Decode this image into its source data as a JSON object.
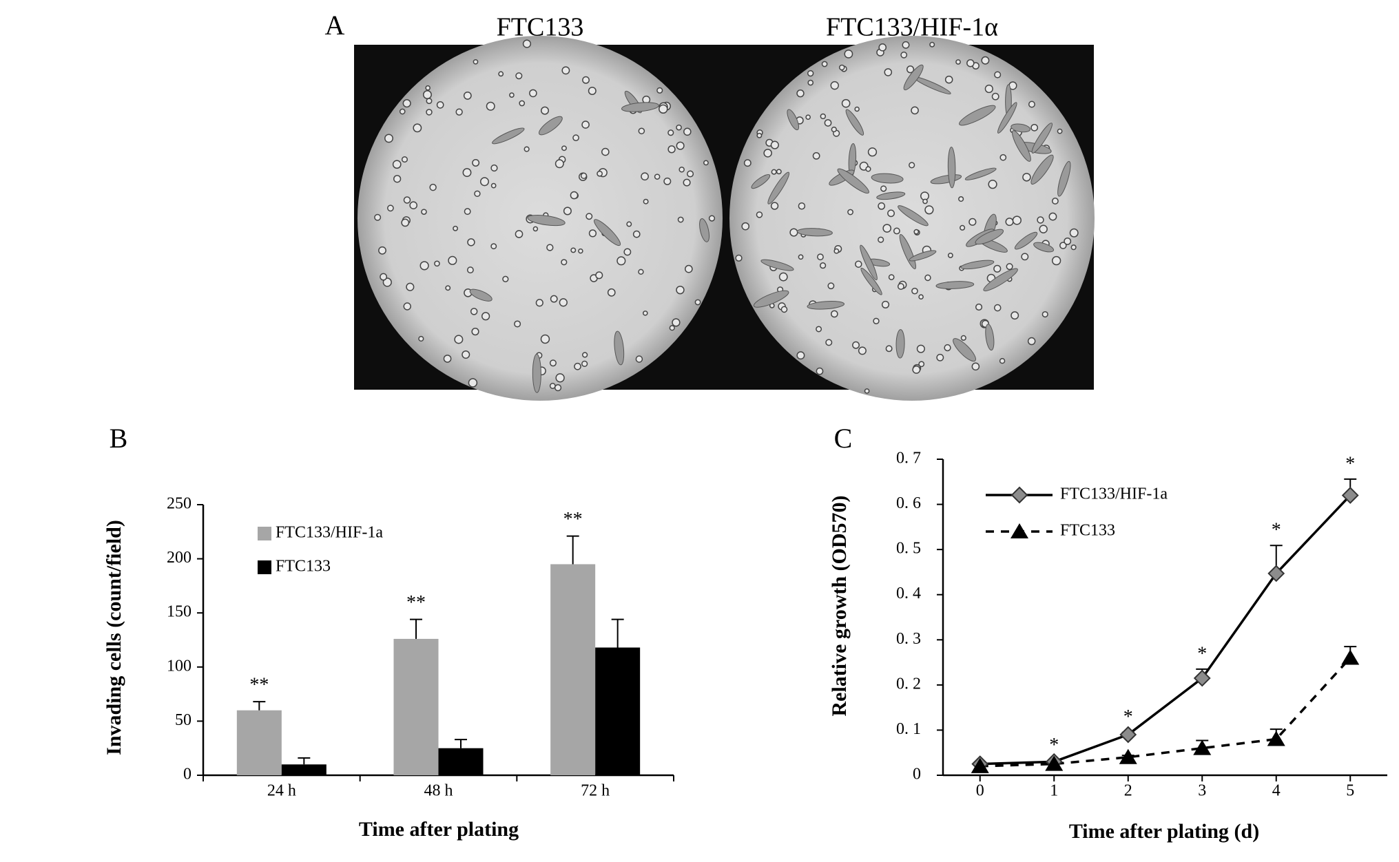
{
  "panel_a": {
    "label": "A",
    "titles": [
      "FTC133",
      "FTC133/HIF-1α"
    ]
  },
  "chart_data": [
    {
      "type": "bar",
      "label": "B",
      "y_label": "Invading cells (count/field)",
      "x_label": "Time after plating",
      "categories": [
        "24 h",
        "48 h",
        "72 h"
      ],
      "series": [
        {
          "name": "FTC133/HIF-1a",
          "color": "#a6a6a6",
          "values": [
            60,
            126,
            195
          ],
          "errors": [
            8,
            18,
            26
          ]
        },
        {
          "name": "FTC133",
          "color": "#000000",
          "values": [
            10,
            25,
            118
          ],
          "errors": [
            6,
            8,
            26
          ]
        }
      ],
      "significance": [
        "**",
        "**",
        "**"
      ],
      "ylim": [
        0,
        250
      ],
      "yticks": [
        0,
        50,
        100,
        150,
        200,
        250
      ]
    },
    {
      "type": "line",
      "label": "C",
      "y_label": "Relative growth (OD570)",
      "x_label": "Time after plating (d)",
      "x": [
        0,
        1,
        2,
        3,
        4,
        5
      ],
      "series": [
        {
          "name": "FTC133/HIF-1a",
          "color": "#000000",
          "marker": "diamond",
          "marker_color": "#8c8c8c",
          "line_style": "solid",
          "values": [
            0.025,
            0.03,
            0.09,
            0.215,
            0.447,
            0.62
          ],
          "errors": [
            0,
            0.003,
            0.005,
            0.02,
            0.062,
            0.036
          ]
        },
        {
          "name": "FTC133",
          "color": "#000000",
          "marker": "triangle",
          "marker_color": "#000000",
          "line_style": "dashed",
          "values": [
            0.02,
            0.025,
            0.04,
            0.06,
            0.08,
            0.26
          ],
          "errors": [
            0,
            0,
            0.004,
            0.017,
            0.022,
            0.025
          ]
        }
      ],
      "significance": [
        null,
        "*",
        "*",
        "*",
        "*",
        "*"
      ],
      "xlim": [
        -0.5,
        5.5
      ],
      "xticks": [
        0,
        1,
        2,
        3,
        4,
        5
      ],
      "ylim": [
        0,
        0.7
      ],
      "yticks": [
        0,
        {
          "value": 0.1,
          "label": "0. 1"
        },
        {
          "value": 0.2,
          "label": "0. 2"
        },
        {
          "value": 0.3,
          "label": "0. 3"
        },
        {
          "value": 0.4,
          "label": "0. 4"
        },
        {
          "value": 0.5,
          "label": "0. 5"
        },
        {
          "value": 0.6,
          "label": "0. 6"
        },
        {
          "value": 0.7,
          "label": "0. 7"
        }
      ]
    }
  ]
}
